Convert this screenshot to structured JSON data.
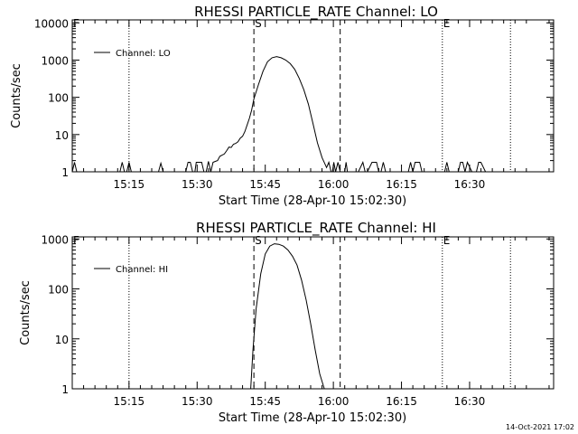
{
  "chart_data": [
    {
      "type": "line",
      "title": "RHESSI PARTICLE_RATE Channel: LO",
      "xlabel": "Start Time (28-Apr-10 15:02:30)",
      "ylabel": "Counts/sec",
      "yscale": "log",
      "xlim_minutes": [
        0,
        106
      ],
      "ylim": [
        1,
        12000
      ],
      "x_tick_values": [
        12.5,
        27.5,
        42.5,
        57.5,
        72.5,
        87.5
      ],
      "x_tick_labels": [
        "15:15",
        "15:30",
        "15:45",
        "16:00",
        "16:15",
        "16:30"
      ],
      "y_tick_values": [
        1,
        10,
        100,
        1000,
        10000
      ],
      "y_tick_labels": [
        "1",
        "10",
        "100",
        "1000",
        "10000"
      ],
      "legend": "Channel: LO",
      "markers": [
        {
          "label": "F",
          "x": 0,
          "style": "dotted"
        },
        {
          "label": "S",
          "x": 40,
          "style": "dashed"
        },
        {
          "label": "",
          "x": 59,
          "style": "dashed"
        },
        {
          "label": "E",
          "x": 81.5,
          "style": "dotted"
        },
        {
          "label": "",
          "x": 12.5,
          "style": "dotted"
        },
        {
          "label": "",
          "x": 96.5,
          "style": "dotted"
        }
      ],
      "series": [
        {
          "name": "Channel: LO",
          "x": [
            0,
            0.5,
            1,
            1.5,
            2,
            3,
            7,
            10.5,
            11,
            11.5,
            12,
            12.5,
            13,
            13.5,
            19,
            19.5,
            20,
            25,
            25.5,
            26,
            26.5,
            27,
            27.3,
            28.5,
            29,
            29.5,
            30,
            30.5,
            31,
            31.5,
            32,
            32.5,
            33,
            33.5,
            34,
            34.5,
            35,
            35.5,
            36,
            36.5,
            37,
            37.5,
            38,
            38.5,
            39,
            39.5,
            40,
            41,
            42,
            43,
            44,
            45,
            46,
            47,
            48,
            49,
            50,
            51,
            52,
            53,
            54,
            55,
            56,
            56.5,
            57,
            57.3,
            57.6,
            58,
            58.5,
            59,
            59.5,
            60,
            60.3,
            60.6,
            61,
            63,
            64,
            64.5,
            65,
            66,
            66.5,
            67,
            67.5,
            68,
            68.5,
            69,
            69.5,
            70,
            71,
            74,
            74.5,
            75,
            75.5,
            76,
            76.5,
            77,
            78,
            82,
            82.5,
            83,
            85,
            85.5,
            86,
            86.5,
            87,
            88,
            89,
            89.5,
            90,
            91,
            106
          ],
          "y": [
            1,
            1.8,
            1,
            1,
            1,
            1,
            1,
            1,
            1.8,
            1,
            1,
            1.8,
            1,
            1,
            1,
            1.7,
            1,
            1,
            1.8,
            1.8,
            1,
            1,
            1.8,
            1.8,
            1,
            1,
            1.9,
            1,
            1.8,
            1.9,
            2,
            2.6,
            2.8,
            3,
            3.7,
            4.6,
            4.5,
            5.5,
            5.8,
            6.4,
            8,
            9,
            12,
            18,
            27,
            45,
            90,
            220,
            500,
            900,
            1150,
            1230,
            1150,
            1000,
            800,
            560,
            320,
            160,
            65,
            20,
            6,
            2.4,
            1.3,
            1.8,
            1,
            1,
            1.8,
            1,
            1.8,
            1,
            1,
            1,
            1.8,
            1,
            1,
            1,
            1.8,
            1,
            1,
            1.8,
            1.8,
            1.8,
            1,
            1,
            1.8,
            1,
            1,
            1,
            1,
            1,
            1.8,
            1,
            1.8,
            1.8,
            1.8,
            1,
            1,
            1,
            1.8,
            1,
            1,
            1.8,
            1.8,
            1,
            1.8,
            1,
            1,
            1.8,
            1.8,
            1,
            1
          ]
        }
      ]
    },
    {
      "type": "line",
      "title": "RHESSI PARTICLE_RATE Channel: HI",
      "xlabel": "Start Time (28-Apr-10 15:02:30)",
      "ylabel": "Counts/sec",
      "yscale": "log",
      "xlim_minutes": [
        0,
        106
      ],
      "ylim": [
        1,
        1100
      ],
      "x_tick_values": [
        12.5,
        27.5,
        42.5,
        57.5,
        72.5,
        87.5
      ],
      "x_tick_labels": [
        "15:15",
        "15:30",
        "15:45",
        "16:00",
        "16:15",
        "16:30"
      ],
      "y_tick_values": [
        1,
        10,
        100,
        1000
      ],
      "y_tick_labels": [
        "1",
        "10",
        "100",
        "1000"
      ],
      "legend": "Channel: HI",
      "markers": [
        {
          "label": "F",
          "x": 0,
          "style": "dotted"
        },
        {
          "label": "S",
          "x": 40,
          "style": "dashed"
        },
        {
          "label": "",
          "x": 59,
          "style": "dashed"
        },
        {
          "label": "E",
          "x": 81.5,
          "style": "dotted"
        },
        {
          "label": "",
          "x": 12.5,
          "style": "dotted"
        },
        {
          "label": "",
          "x": 96.5,
          "style": "dotted"
        }
      ],
      "series": [
        {
          "name": "Channel: HI",
          "x": [
            39.3,
            39.8,
            40.5,
            41.5,
            42.5,
            43.5,
            44.5,
            45.5,
            46.5,
            47.5,
            48.5,
            49.5,
            50.5,
            51.5,
            52.5,
            53.5,
            54.5,
            55.5
          ],
          "y": [
            1,
            6,
            40,
            200,
            500,
            720,
            800,
            780,
            720,
            600,
            450,
            300,
            150,
            60,
            20,
            6,
            2,
            1
          ]
        }
      ]
    }
  ],
  "footer": {
    "timestamp": "14-Oct-2021 17:02"
  }
}
